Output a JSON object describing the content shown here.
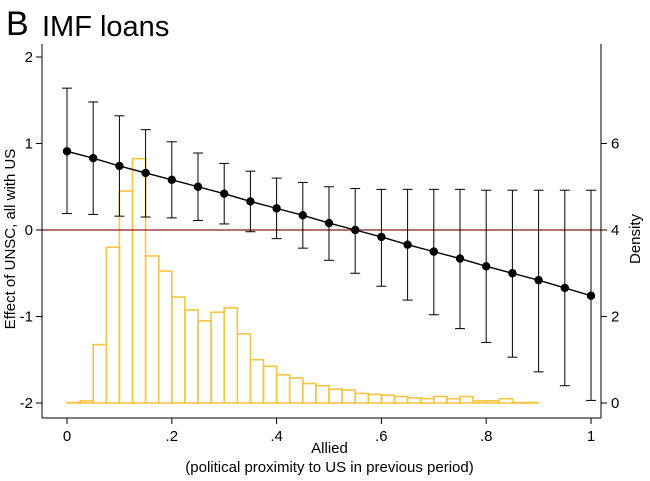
{
  "panel": {
    "label": "B",
    "title": "IMF loans"
  },
  "chart_data": {
    "type": "line",
    "xlabel": "Allied",
    "xlabel_sub": "(political proximity to US in previous period)",
    "ylabel_left": "Effect of UNSC, all with US",
    "ylabel_right": "Density",
    "xlim": [
      0,
      1
    ],
    "ylim_left": [
      -2,
      2
    ],
    "ylim_right": [
      0,
      8
    ],
    "x_ticks": [
      0,
      0.2,
      0.4,
      0.6,
      0.8,
      1
    ],
    "x_tick_labels": [
      "0",
      ".2",
      ".4",
      ".6",
      ".8",
      "1"
    ],
    "y_left_ticks": [
      -2,
      -1,
      0,
      1,
      2
    ],
    "y_left_tick_labels": [
      "-2",
      "-1",
      "0",
      "1",
      "2"
    ],
    "y_right_ticks": [
      0,
      2,
      4,
      6
    ],
    "y_right_tick_labels": [
      "0",
      "2",
      "4",
      "6"
    ],
    "reference_line": {
      "y": 0,
      "color": "#8b1a1a"
    },
    "series": [
      {
        "type": "line_with_error_bars",
        "axis": "left",
        "color": "#000000",
        "x": [
          0,
          0.05,
          0.1,
          0.15,
          0.2,
          0.25,
          0.3,
          0.35,
          0.4,
          0.45,
          0.5,
          0.55,
          0.6,
          0.65,
          0.7,
          0.75,
          0.8,
          0.85,
          0.9,
          0.95,
          1.0
        ],
        "y": [
          0.91,
          0.83,
          0.74,
          0.66,
          0.58,
          0.5,
          0.42,
          0.33,
          0.25,
          0.17,
          0.08,
          0.0,
          -0.08,
          -0.17,
          -0.25,
          -0.33,
          -0.42,
          -0.5,
          -0.58,
          -0.67,
          -0.76
        ],
        "ci_upper": [
          1.64,
          1.48,
          1.32,
          1.16,
          1.02,
          0.89,
          0.77,
          0.68,
          0.6,
          0.55,
          0.5,
          0.48,
          0.47,
          0.47,
          0.47,
          0.47,
          0.46,
          0.46,
          0.46,
          0.46,
          0.46
        ],
        "ci_lower": [
          0.19,
          0.18,
          0.16,
          0.15,
          0.14,
          0.11,
          0.07,
          -0.02,
          -0.1,
          -0.21,
          -0.35,
          -0.5,
          -0.65,
          -0.81,
          -0.98,
          -1.14,
          -1.3,
          -1.47,
          -1.64,
          -1.8,
          -1.97
        ]
      },
      {
        "type": "histogram",
        "axis": "right",
        "color": "#f5c542",
        "bin_width": 0.025,
        "bin_starts": [
          0,
          0.025,
          0.05,
          0.075,
          0.1,
          0.125,
          0.15,
          0.175,
          0.2,
          0.225,
          0.25,
          0.275,
          0.3,
          0.325,
          0.35,
          0.375,
          0.4,
          0.425,
          0.45,
          0.475,
          0.5,
          0.525,
          0.55,
          0.575,
          0.6,
          0.625,
          0.65,
          0.675,
          0.7,
          0.725,
          0.75,
          0.775,
          0.8,
          0.825,
          0.85,
          0.875
        ],
        "density": [
          0.0,
          0.05,
          1.35,
          3.6,
          4.9,
          5.65,
          3.4,
          3.05,
          2.45,
          2.15,
          1.9,
          2.1,
          2.2,
          1.6,
          1.0,
          0.85,
          0.65,
          0.58,
          0.45,
          0.4,
          0.32,
          0.3,
          0.22,
          0.2,
          0.18,
          0.15,
          0.12,
          0.1,
          0.15,
          0.1,
          0.15,
          0.05,
          0.05,
          0.1,
          0.0,
          0.0
        ]
      }
    ]
  }
}
